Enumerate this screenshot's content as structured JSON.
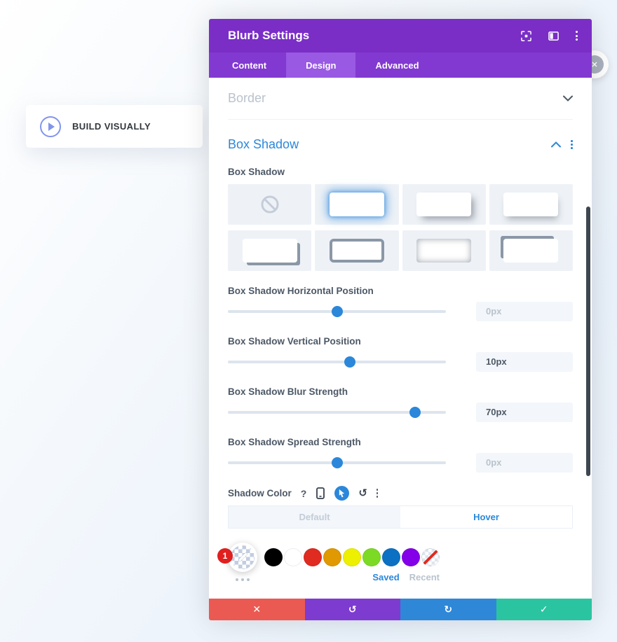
{
  "icons": {
    "help": "?",
    "reset": "↺",
    "close_x": "✕"
  },
  "canvas": {
    "build_visually_label": "BUILD VISUALLY"
  },
  "modal": {
    "title": "Blurb Settings",
    "tabs": [
      {
        "label": "Content"
      },
      {
        "label": "Design"
      },
      {
        "label": "Advanced"
      }
    ],
    "active_tab": "Design",
    "border_section": {
      "title": "Border"
    },
    "box_shadow": {
      "title": "Box Shadow",
      "field_label": "Box Shadow",
      "presets": [
        "none",
        "glow-selected",
        "drop-bottom-right",
        "drop-bottom",
        "solid-offset-bottom-right",
        "thick-border",
        "inset-glow",
        "solid-offset-top-left"
      ],
      "selected_preset_index": 1,
      "sliders": [
        {
          "label": "Box Shadow Horizontal Position",
          "value": "0px",
          "percent": 50,
          "muted": true
        },
        {
          "label": "Box Shadow Vertical Position",
          "value": "10px",
          "percent": 56,
          "muted": false
        },
        {
          "label": "Box Shadow Blur Strength",
          "value": "70px",
          "percent": 86,
          "muted": false
        },
        {
          "label": "Box Shadow Spread Strength",
          "value": "0px",
          "percent": 50,
          "muted": true
        }
      ],
      "shadow_color": {
        "label": "Shadow Color",
        "state_tabs": [
          {
            "label": "Default"
          },
          {
            "label": "Hover"
          }
        ],
        "active_state": "Hover",
        "badge": "1",
        "swatches": [
          "#000000",
          "#FFFFFF",
          "#E02B20",
          "#E09900",
          "#EDF000",
          "#7CDA24",
          "#0C71C3",
          "#8300E9",
          "transparent"
        ],
        "saved_label": "Saved",
        "recent_label": "Recent"
      }
    },
    "footer_buttons": [
      {
        "name": "discard",
        "icon": "✕",
        "color": "#EA5A52"
      },
      {
        "name": "undo",
        "icon": "↺",
        "color": "#7E3BD0"
      },
      {
        "name": "redo",
        "icon": "↻",
        "color": "#2F87D8"
      },
      {
        "name": "save",
        "icon": "✓",
        "color": "#2BC4A1"
      }
    ],
    "colors": {
      "accent_blue": "#2B87DA",
      "header_purple": "#7A2EC6",
      "tabbar_purple": "#8239D1",
      "active_tab_purple": "#9959E2"
    }
  }
}
